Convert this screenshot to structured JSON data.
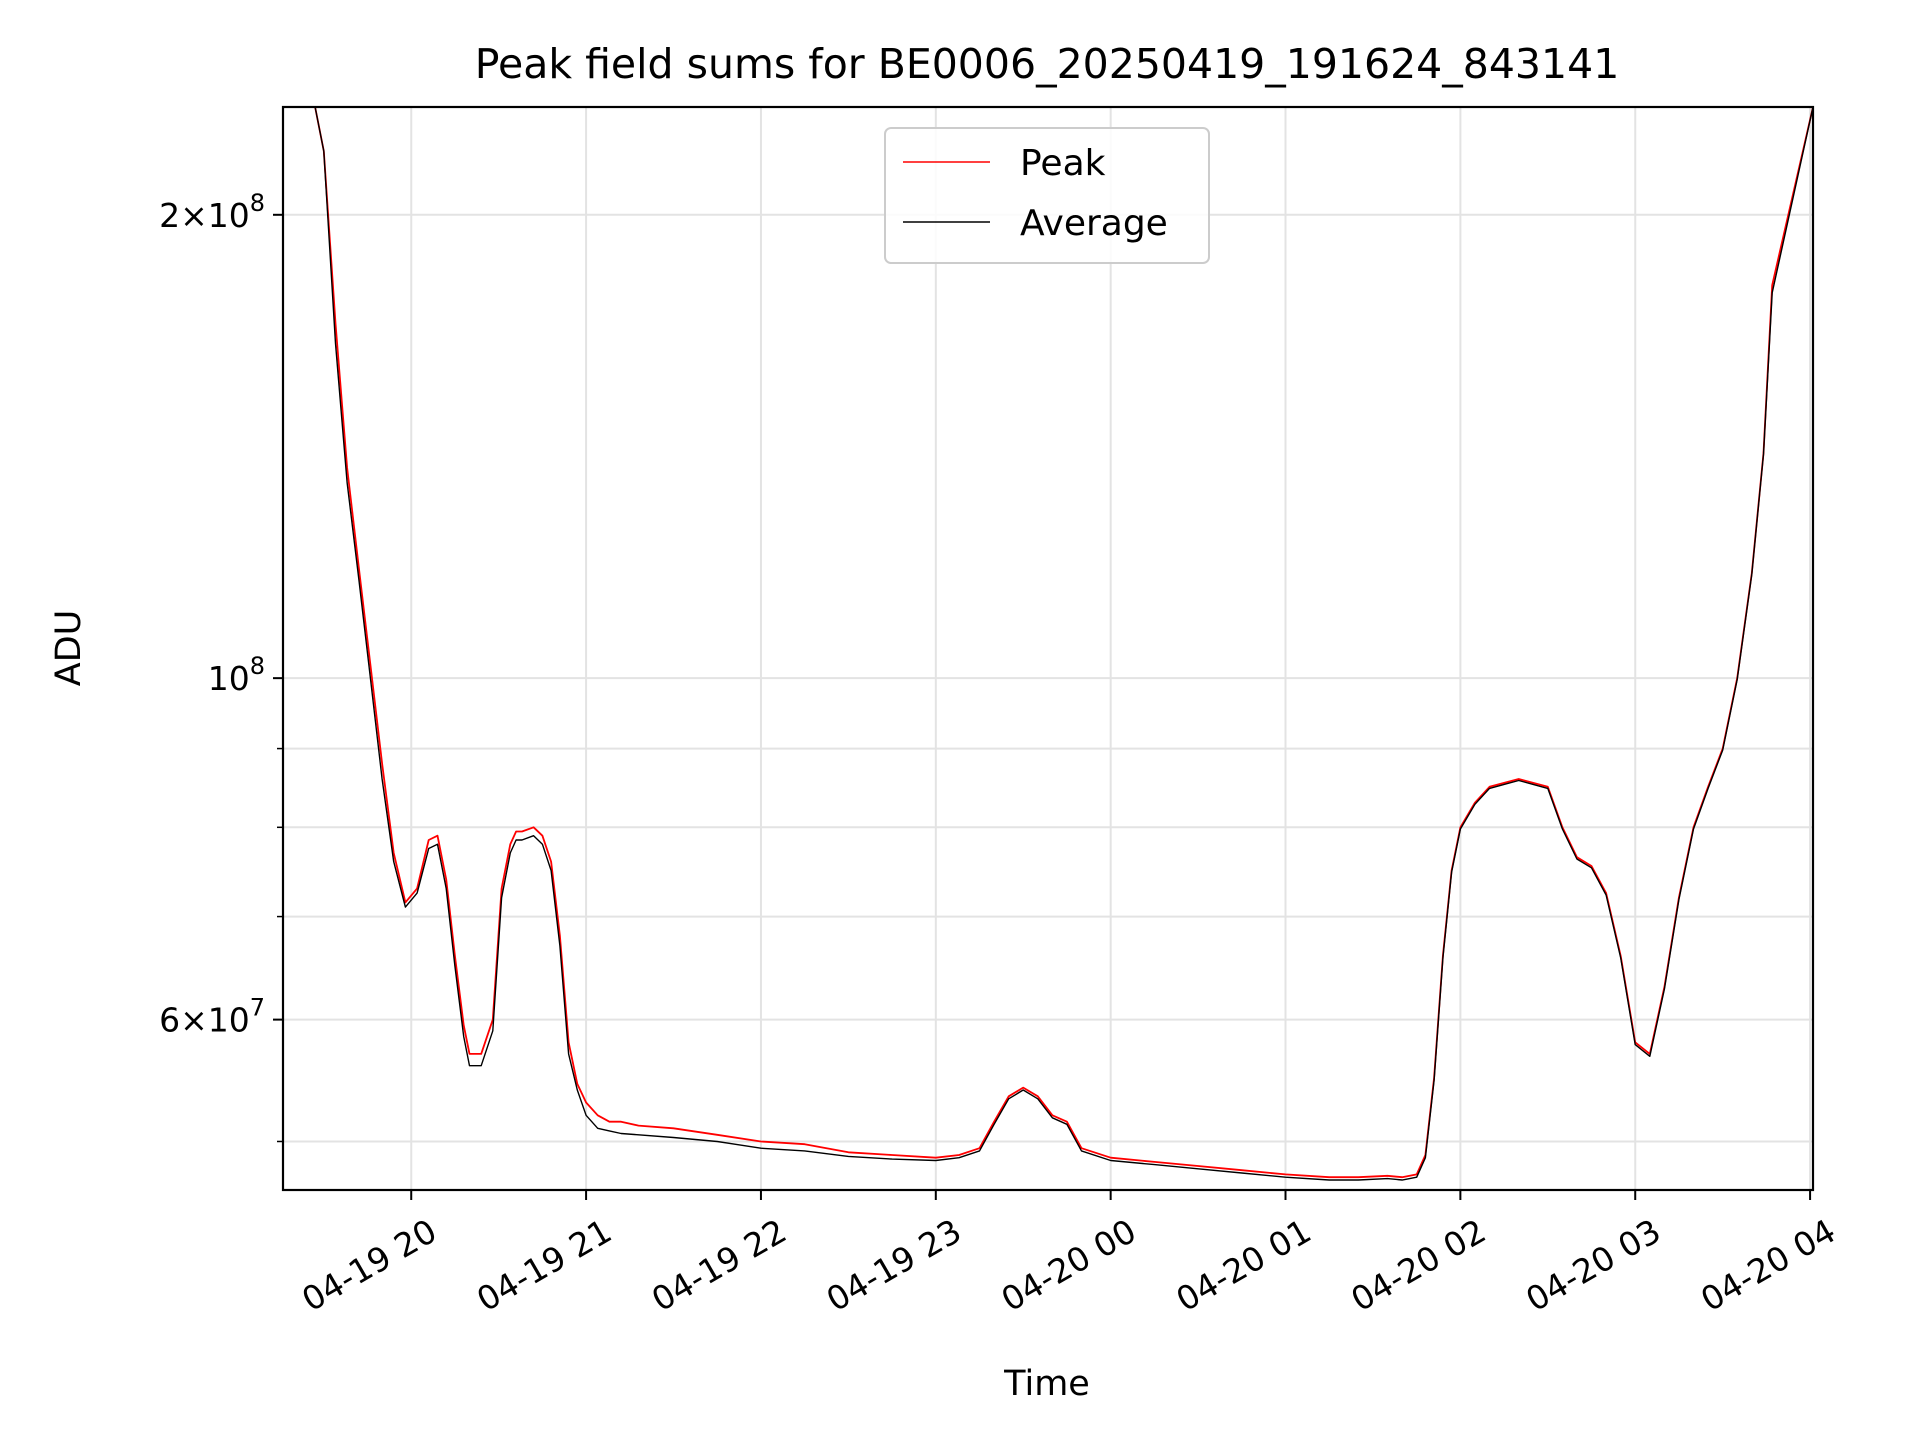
{
  "chart_data": {
    "type": "line",
    "title": "Peak field sums for BE0006_20250419_191624_843141",
    "xlabel": "Time",
    "ylabel": "ADU",
    "y_scale": "log",
    "ylim": [
      46500000,
      235000000
    ],
    "xlim": [
      "2025-04-19T19:16",
      "2025-04-20T04:01"
    ],
    "grid": true,
    "legend_position": "top-center",
    "x_ticks": [
      {
        "value": "2025-04-19T20:00",
        "label": "04-19 20"
      },
      {
        "value": "2025-04-19T21:00",
        "label": "04-19 21"
      },
      {
        "value": "2025-04-19T22:00",
        "label": "04-19 22"
      },
      {
        "value": "2025-04-19T23:00",
        "label": "04-19 23"
      },
      {
        "value": "2025-04-20T00:00",
        "label": "04-20 00"
      },
      {
        "value": "2025-04-20T01:00",
        "label": "04-20 01"
      },
      {
        "value": "2025-04-20T02:00",
        "label": "04-20 02"
      },
      {
        "value": "2025-04-20T03:00",
        "label": "04-20 03"
      },
      {
        "value": "2025-04-20T04:00",
        "label": "04-20 04"
      }
    ],
    "y_major_ticks": [
      {
        "value": 60000000,
        "mantissa": "6",
        "exponent": "7"
      },
      {
        "value": 100000000,
        "mantissa": "",
        "exponent": "8"
      },
      {
        "value": 200000000,
        "mantissa": "2",
        "exponent": "8"
      }
    ],
    "y_minor_ticks": [
      50000000,
      70000000,
      80000000,
      90000000
    ],
    "series": [
      {
        "name": "Peak",
        "color": "#ff0000",
        "x": [
          "2025-04-19T19:16",
          "2025-04-19T19:27",
          "2025-04-19T19:30",
          "2025-04-19T19:34",
          "2025-04-19T19:38",
          "2025-04-19T19:42",
          "2025-04-19T19:46",
          "2025-04-19T19:50",
          "2025-04-19T19:54",
          "2025-04-19T19:58",
          "2025-04-19T20:02",
          "2025-04-19T20:06",
          "2025-04-19T20:09",
          "2025-04-19T20:12",
          "2025-04-19T20:15",
          "2025-04-19T20:18",
          "2025-04-19T20:20",
          "2025-04-19T20:24",
          "2025-04-19T20:28",
          "2025-04-19T20:31",
          "2025-04-19T20:34",
          "2025-04-19T20:36",
          "2025-04-19T20:38",
          "2025-04-19T20:42",
          "2025-04-19T20:45",
          "2025-04-19T20:48",
          "2025-04-19T20:51",
          "2025-04-19T20:54",
          "2025-04-19T20:57",
          "2025-04-19T21:00",
          "2025-04-19T21:04",
          "2025-04-19T21:08",
          "2025-04-19T21:12",
          "2025-04-19T21:18",
          "2025-04-19T21:30",
          "2025-04-19T21:45",
          "2025-04-19T22:00",
          "2025-04-19T22:15",
          "2025-04-19T22:30",
          "2025-04-19T22:45",
          "2025-04-19T23:00",
          "2025-04-19T23:08",
          "2025-04-19T23:15",
          "2025-04-19T23:20",
          "2025-04-19T23:25",
          "2025-04-19T23:30",
          "2025-04-19T23:35",
          "2025-04-19T23:40",
          "2025-04-19T23:45",
          "2025-04-19T23:50",
          "2025-04-20T00:00",
          "2025-04-20T00:15",
          "2025-04-20T00:30",
          "2025-04-20T00:45",
          "2025-04-20T01:00",
          "2025-04-20T01:15",
          "2025-04-20T01:25",
          "2025-04-20T01:35",
          "2025-04-20T01:40",
          "2025-04-20T01:45",
          "2025-04-20T01:48",
          "2025-04-20T01:51",
          "2025-04-20T01:54",
          "2025-04-20T01:57",
          "2025-04-20T02:00",
          "2025-04-20T02:05",
          "2025-04-20T02:10",
          "2025-04-20T02:15",
          "2025-04-20T02:20",
          "2025-04-20T02:25",
          "2025-04-20T02:30",
          "2025-04-20T02:35",
          "2025-04-20T02:40",
          "2025-04-20T02:45",
          "2025-04-20T02:50",
          "2025-04-20T02:55",
          "2025-04-20T03:00",
          "2025-04-20T03:05",
          "2025-04-20T03:10",
          "2025-04-20T03:15",
          "2025-04-20T03:20",
          "2025-04-20T03:25",
          "2025-04-20T03:30",
          "2025-04-20T03:35",
          "2025-04-20T03:40",
          "2025-04-20T03:44",
          "2025-04-20T03:47",
          "2025-04-20T04:01"
        ],
        "y": [
          235000000,
          235000000,
          220000000,
          170000000,
          137000000,
          118000000,
          102000000,
          88000000,
          77000000,
          71500000,
          73000000,
          78500000,
          79000000,
          74000000,
          66000000,
          59500000,
          57000000,
          57000000,
          60000000,
          73000000,
          78000000,
          79500000,
          79500000,
          80000000,
          79000000,
          76000000,
          68000000,
          58000000,
          54500000,
          53000000,
          52000000,
          51500000,
          51500000,
          51200000,
          51000000,
          50500000,
          50000000,
          49800000,
          49200000,
          49000000,
          48800000,
          49000000,
          49500000,
          51500000,
          53500000,
          54200000,
          53500000,
          52000000,
          51500000,
          49500000,
          48800000,
          48500000,
          48200000,
          47900000,
          47600000,
          47400000,
          47400000,
          47500000,
          47400000,
          47600000,
          49000000,
          55000000,
          66000000,
          75000000,
          80000000,
          83000000,
          85000000,
          85500000,
          86000000,
          85500000,
          85000000,
          80000000,
          76500000,
          75500000,
          72500000,
          66000000,
          58000000,
          57000000,
          63000000,
          72000000,
          80000000,
          85000000,
          90000000,
          100000000,
          117000000,
          140000000,
          180000000,
          235000000
        ]
      },
      {
        "name": "Average",
        "color": "#000000",
        "x": [
          "2025-04-19T19:16",
          "2025-04-19T19:27",
          "2025-04-19T19:30",
          "2025-04-19T19:34",
          "2025-04-19T19:38",
          "2025-04-19T19:42",
          "2025-04-19T19:46",
          "2025-04-19T19:50",
          "2025-04-19T19:54",
          "2025-04-19T19:58",
          "2025-04-19T20:02",
          "2025-04-19T20:06",
          "2025-04-19T20:09",
          "2025-04-19T20:12",
          "2025-04-19T20:15",
          "2025-04-19T20:18",
          "2025-04-19T20:20",
          "2025-04-19T20:24",
          "2025-04-19T20:28",
          "2025-04-19T20:31",
          "2025-04-19T20:34",
          "2025-04-19T20:36",
          "2025-04-19T20:38",
          "2025-04-19T20:42",
          "2025-04-19T20:45",
          "2025-04-19T20:48",
          "2025-04-19T20:51",
          "2025-04-19T20:54",
          "2025-04-19T20:57",
          "2025-04-19T21:00",
          "2025-04-19T21:04",
          "2025-04-19T21:08",
          "2025-04-19T21:12",
          "2025-04-19T21:18",
          "2025-04-19T21:30",
          "2025-04-19T21:45",
          "2025-04-19T22:00",
          "2025-04-19T22:15",
          "2025-04-19T22:30",
          "2025-04-19T22:45",
          "2025-04-19T23:00",
          "2025-04-19T23:08",
          "2025-04-19T23:15",
          "2025-04-19T23:20",
          "2025-04-19T23:25",
          "2025-04-19T23:30",
          "2025-04-19T23:35",
          "2025-04-19T23:40",
          "2025-04-19T23:45",
          "2025-04-19T23:50",
          "2025-04-20T00:00",
          "2025-04-20T00:15",
          "2025-04-20T00:30",
          "2025-04-20T00:45",
          "2025-04-20T01:00",
          "2025-04-20T01:15",
          "2025-04-20T01:25",
          "2025-04-20T01:35",
          "2025-04-20T01:40",
          "2025-04-20T01:45",
          "2025-04-20T01:48",
          "2025-04-20T01:51",
          "2025-04-20T01:54",
          "2025-04-20T01:57",
          "2025-04-20T02:00",
          "2025-04-20T02:05",
          "2025-04-20T02:10",
          "2025-04-20T02:15",
          "2025-04-20T02:20",
          "2025-04-20T02:25",
          "2025-04-20T02:30",
          "2025-04-20T02:35",
          "2025-04-20T02:40",
          "2025-04-20T02:45",
          "2025-04-20T02:50",
          "2025-04-20T02:55",
          "2025-04-20T03:00",
          "2025-04-20T03:05",
          "2025-04-20T03:10",
          "2025-04-20T03:15",
          "2025-04-20T03:20",
          "2025-04-20T03:25",
          "2025-04-20T03:30",
          "2025-04-20T03:35",
          "2025-04-20T03:40",
          "2025-04-20T03:44",
          "2025-04-20T03:47",
          "2025-04-20T04:01"
        ],
        "y": [
          235000000,
          235000000,
          220000000,
          165000000,
          134000000,
          116000000,
          100000000,
          86000000,
          76000000,
          71000000,
          72500000,
          77500000,
          78000000,
          73000000,
          65000000,
          58500000,
          56000000,
          56000000,
          59000000,
          72000000,
          77000000,
          78500000,
          78500000,
          79000000,
          78000000,
          75000000,
          67000000,
          57000000,
          54000000,
          52000000,
          51000000,
          50800000,
          50600000,
          50500000,
          50300000,
          50000000,
          49500000,
          49300000,
          48900000,
          48700000,
          48600000,
          48800000,
          49300000,
          51300000,
          53300000,
          54000000,
          53300000,
          51800000,
          51300000,
          49300000,
          48600000,
          48300000,
          48000000,
          47700000,
          47400000,
          47200000,
          47200000,
          47300000,
          47200000,
          47400000,
          48800000,
          54800000,
          65800000,
          74800000,
          79800000,
          82800000,
          84800000,
          85300000,
          85800000,
          85300000,
          84800000,
          79800000,
          76300000,
          75300000,
          72300000,
          65800000,
          57800000,
          56800000,
          62800000,
          71800000,
          79800000,
          84800000,
          89800000,
          99800000,
          116800000,
          139800000,
          178000000,
          235000000
        ]
      }
    ]
  }
}
